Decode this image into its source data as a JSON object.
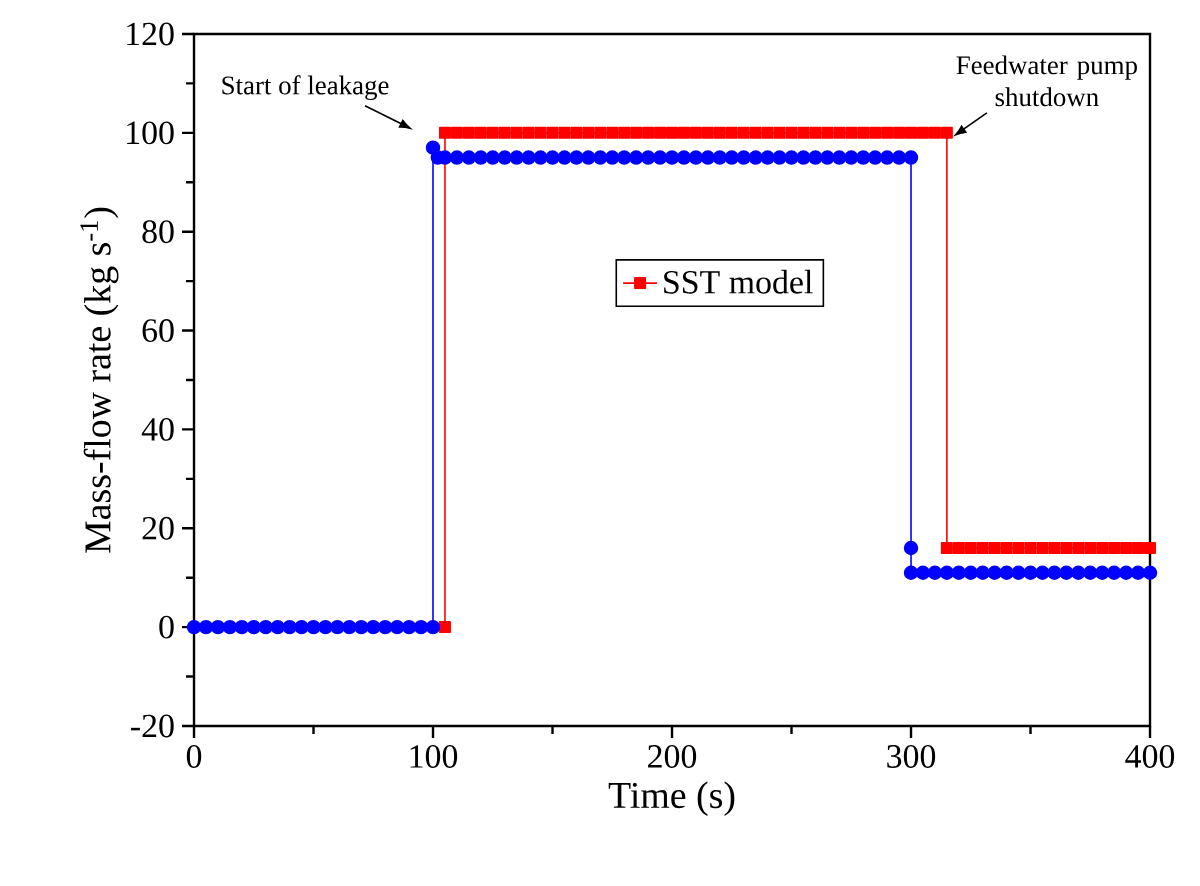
{
  "chart_data": {
    "type": "line",
    "xlabel": "Time (s)",
    "ylabel": "Mass-flow rate (kg s$^{-1}$)",
    "xlim": [
      0,
      400
    ],
    "xticks": [
      0,
      100,
      200,
      300,
      400
    ],
    "ylim": [
      -20,
      120
    ],
    "yticks": [
      -20,
      0,
      20,
      40,
      60,
      80,
      100,
      120
    ],
    "grid": false,
    "legend": "center",
    "line_style": "solid",
    "annotations": [
      {
        "text": "Start of leakage",
        "x": 100,
        "y": 97
      },
      {
        "text": "Feedwater pump shutdown",
        "x": 315,
        "y": 100
      }
    ],
    "series": [
      {
        "name": "SST model",
        "color": "#ff0000",
        "marker": "square",
        "x": [
          105,
          105,
          110,
          115,
          120,
          125,
          130,
          135,
          140,
          145,
          150,
          155,
          160,
          165,
          170,
          175,
          180,
          185,
          190,
          195,
          200,
          205,
          210,
          215,
          220,
          225,
          230,
          235,
          240,
          245,
          250,
          255,
          260,
          265,
          270,
          275,
          280,
          285,
          290,
          295,
          300,
          305,
          310,
          315,
          315,
          320,
          325,
          330,
          335,
          340,
          345,
          350,
          355,
          360,
          365,
          370,
          375,
          380,
          385,
          390,
          395,
          400
        ],
        "values": [
          0,
          100,
          100,
          100,
          100,
          100,
          100,
          100,
          100,
          100,
          100,
          100,
          100,
          100,
          100,
          100,
          100,
          100,
          100,
          100,
          100,
          100,
          100,
          100,
          100,
          100,
          100,
          100,
          100,
          100,
          100,
          100,
          100,
          100,
          100,
          100,
          100,
          100,
          100,
          100,
          100,
          100,
          100,
          100,
          16,
          16,
          16,
          16,
          16,
          16,
          16,
          16,
          16,
          16,
          16,
          16,
          16,
          16,
          16,
          16,
          16,
          16
        ]
      },
      {
        "color": "#0000ff",
        "marker": "circle",
        "x": [
          0,
          5,
          10,
          15,
          20,
          25,
          30,
          35,
          40,
          45,
          50,
          55,
          60,
          65,
          70,
          75,
          80,
          85,
          90,
          95,
          100,
          100,
          102,
          105,
          110,
          115,
          120,
          125,
          130,
          135,
          140,
          145,
          150,
          155,
          160,
          165,
          170,
          175,
          180,
          185,
          190,
          195,
          200,
          205,
          210,
          215,
          220,
          225,
          230,
          235,
          240,
          245,
          250,
          255,
          260,
          265,
          270,
          275,
          280,
          285,
          290,
          295,
          300,
          300,
          300,
          305,
          310,
          315,
          320,
          325,
          330,
          335,
          340,
          345,
          350,
          355,
          360,
          365,
          370,
          375,
          380,
          385,
          390,
          395,
          400
        ],
        "values": [
          0,
          0,
          0,
          0,
          0,
          0,
          0,
          0,
          0,
          0,
          0,
          0,
          0,
          0,
          0,
          0,
          0,
          0,
          0,
          0,
          0,
          97,
          95,
          95,
          95,
          95,
          95,
          95,
          95,
          95,
          95,
          95,
          95,
          95,
          95,
          95,
          95,
          95,
          95,
          95,
          95,
          95,
          95,
          95,
          95,
          95,
          95,
          95,
          95,
          95,
          95,
          95,
          95,
          95,
          95,
          95,
          95,
          95,
          95,
          95,
          95,
          95,
          95,
          16,
          11,
          11,
          11,
          11,
          11,
          11,
          11,
          11,
          11,
          11,
          11,
          11,
          11,
          11,
          11,
          11,
          11,
          11,
          11,
          11,
          11
        ]
      }
    ]
  }
}
